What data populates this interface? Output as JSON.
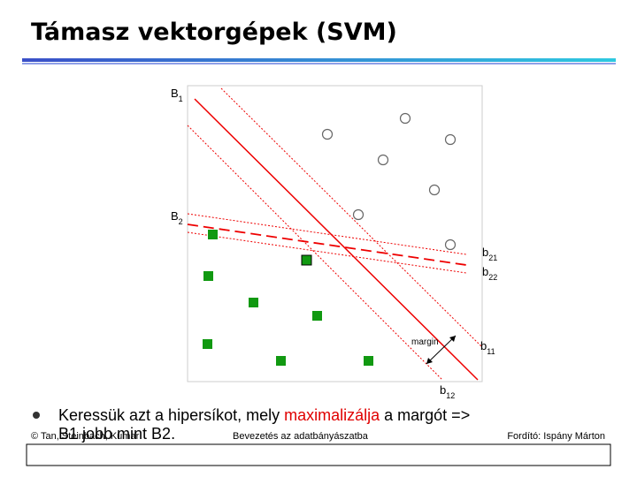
{
  "header": {
    "title": "Támasz vektorgépek (SVM)"
  },
  "diagram": {
    "labels": {
      "b1": {
        "main": "B",
        "sub": "1"
      },
      "b2": {
        "main": "B",
        "sub": "2"
      },
      "b21": {
        "main": "b",
        "sub": "21"
      },
      "b22": {
        "main": "b",
        "sub": "22"
      },
      "b11": {
        "main": "b",
        "sub": "11"
      },
      "b12": {
        "main": "b",
        "sub": "12"
      },
      "margin": "margin"
    }
  },
  "bullet": {
    "parts": [
      "Keressük azt a hipersíkot, mely ",
      "maximalizálja",
      " a margót =>"
    ],
    "line2": "B1 jobb mint B2."
  },
  "footer": {
    "left": "© Tan, Steinbach, Kumar",
    "center": "Bevezetés az adatbányászatba",
    "right": "Fordító: Ispány Márton"
  }
}
